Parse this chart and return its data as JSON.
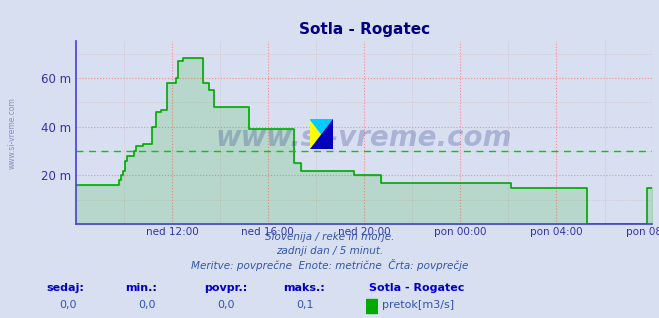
{
  "title": "Sotla - Rogatec",
  "title_color": "#000080",
  "bg_color": "#d8dff0",
  "plot_bg_color": "#d8dff0",
  "line_color": "#00aa00",
  "avg_line_color": "#00cc00",
  "avg_value": 30,
  "ylim": [
    0,
    75
  ],
  "yticks": [
    20,
    40,
    60
  ],
  "ytick_labels": [
    "20 m",
    "40 m",
    "60 m"
  ],
  "xlabel_color": "#3333aa",
  "ylabel_color": "#3333aa",
  "grid_color_h": "#ff8888",
  "grid_color_v": "#ff8888",
  "grid_color_minor": "#ccaaaa",
  "spine_color": "#4444cc",
  "watermark_text": "www.si-vreme.com",
  "watermark_color": "#223388",
  "watermark_alpha": 0.25,
  "subtitle1": "Slovenija / reke in morje.",
  "subtitle2": "zadnji dan / 5 minut.",
  "subtitle3": "Meritve: povprečne  Enote: metrične  Črta: povprečje",
  "subtitle_color": "#3355aa",
  "footer_labels": [
    "sedaj:",
    "min.:",
    "povpr.:",
    "maks.:"
  ],
  "footer_values": [
    "0,0",
    "0,0",
    "0,0",
    "0,1"
  ],
  "footer_station": "Sotla - Rogatec",
  "footer_legend": "pretok[m3/s]",
  "footer_label_color": "#0000cc",
  "footer_value_color": "#3355aa",
  "xtick_labels": [
    "ned 12:00",
    "ned 16:00",
    "ned 20:00",
    "pon 00:00",
    "pon 04:00",
    "pon 08:00"
  ],
  "xtick_positions": [
    0.167,
    0.333,
    0.5,
    0.667,
    0.833,
    1.0
  ],
  "data_y": [
    16,
    16,
    16,
    16,
    16,
    16,
    16,
    16,
    16,
    16,
    16,
    16,
    16,
    16,
    16,
    16,
    16,
    16,
    16,
    16,
    16,
    16,
    16,
    16,
    18,
    20,
    22,
    26,
    28,
    28,
    28,
    28,
    30,
    32,
    32,
    32,
    32,
    33,
    33,
    33,
    33,
    33,
    40,
    40,
    46,
    46,
    46,
    47,
    47,
    47,
    58,
    58,
    58,
    58,
    58,
    60,
    67,
    67,
    67,
    68,
    68,
    68,
    68,
    68,
    68,
    68,
    68,
    68,
    68,
    68,
    58,
    58,
    58,
    55,
    55,
    55,
    48,
    48,
    48,
    48,
    48,
    48,
    48,
    48,
    48,
    48,
    48,
    48,
    48,
    48,
    48,
    48,
    48,
    48,
    48,
    39,
    39,
    39,
    39,
    39,
    39,
    39,
    39,
    39,
    39,
    39,
    39,
    39,
    39,
    39,
    39,
    39,
    39,
    39,
    39,
    39,
    39,
    39,
    39,
    39,
    25,
    25,
    25,
    25,
    22,
    22,
    22,
    22,
    22,
    22,
    22,
    22,
    22,
    22,
    22,
    22,
    22,
    22,
    22,
    22,
    22,
    22,
    22,
    22,
    22,
    22,
    22,
    22,
    22,
    22,
    22,
    22,
    22,
    20,
    20,
    20,
    20,
    20,
    20,
    20,
    20,
    20,
    20,
    20,
    20,
    20,
    20,
    20,
    17,
    17,
    17,
    17,
    17,
    17,
    17,
    17,
    17,
    17,
    17,
    17,
    17,
    17,
    17,
    17,
    17,
    17,
    17,
    17,
    17,
    17,
    17,
    17,
    17,
    17,
    17,
    17,
    17,
    17,
    17,
    17,
    17,
    17,
    17,
    17,
    17,
    17,
    17,
    17,
    17,
    17,
    17,
    17,
    17,
    17,
    17,
    17,
    17,
    17,
    17,
    17,
    17,
    17,
    17,
    17,
    17,
    17,
    17,
    17,
    17,
    17,
    17,
    17,
    17,
    17,
    17,
    17,
    17,
    17,
    17,
    15,
    15,
    15,
    15,
    15,
    15,
    15,
    15,
    15,
    15,
    15,
    15,
    15,
    15,
    15,
    15,
    15,
    15,
    15,
    15,
    15,
    15,
    15,
    15,
    15,
    15,
    15,
    15,
    15,
    15,
    15,
    15,
    15,
    15,
    15,
    15,
    15,
    15,
    15,
    15,
    15,
    15,
    0,
    0,
    0,
    0,
    0,
    0,
    0,
    0,
    0,
    0,
    0,
    0,
    0,
    0,
    0,
    0,
    0,
    0,
    0,
    0,
    0,
    0,
    0,
    0,
    0,
    0,
    0,
    0,
    0,
    0,
    0,
    0,
    0,
    15,
    15,
    15,
    15
  ]
}
